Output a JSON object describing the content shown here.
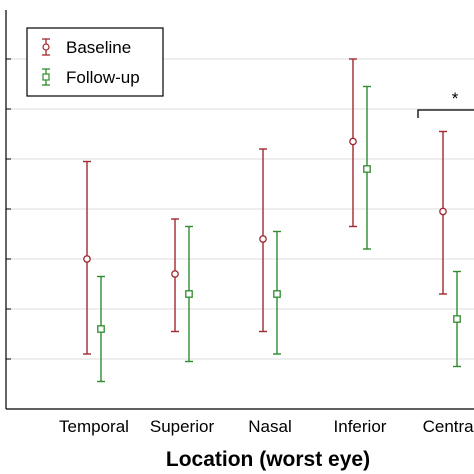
{
  "chart_data": {
    "type": "errorbar",
    "title": "",
    "xlabel": "Location (worst eye)",
    "ylabel": "",
    "categories": [
      "Temporal",
      "Superior",
      "Nasal",
      "Inferior",
      "Central"
    ],
    "ylim": [
      0,
      8
    ],
    "grid": true,
    "legend_position": "top-left",
    "series": [
      {
        "name": "Baseline",
        "color": "#a0282e",
        "marker": "circle",
        "mean": [
          3.0,
          2.7,
          3.4,
          5.35,
          3.95
        ],
        "lower": [
          1.1,
          1.55,
          1.55,
          3.65,
          2.3
        ],
        "upper": [
          4.95,
          3.8,
          5.2,
          7.0,
          5.55
        ]
      },
      {
        "name": "Follow-up",
        "color": "#2e8b2e",
        "marker": "square",
        "mean": [
          1.6,
          2.3,
          2.3,
          4.8,
          1.8
        ],
        "lower": [
          0.55,
          0.95,
          1.1,
          3.2,
          0.85
        ],
        "upper": [
          2.65,
          3.65,
          3.55,
          6.45,
          2.75
        ]
      }
    ],
    "annotations": [
      {
        "text": "*",
        "category": "Central"
      }
    ]
  }
}
